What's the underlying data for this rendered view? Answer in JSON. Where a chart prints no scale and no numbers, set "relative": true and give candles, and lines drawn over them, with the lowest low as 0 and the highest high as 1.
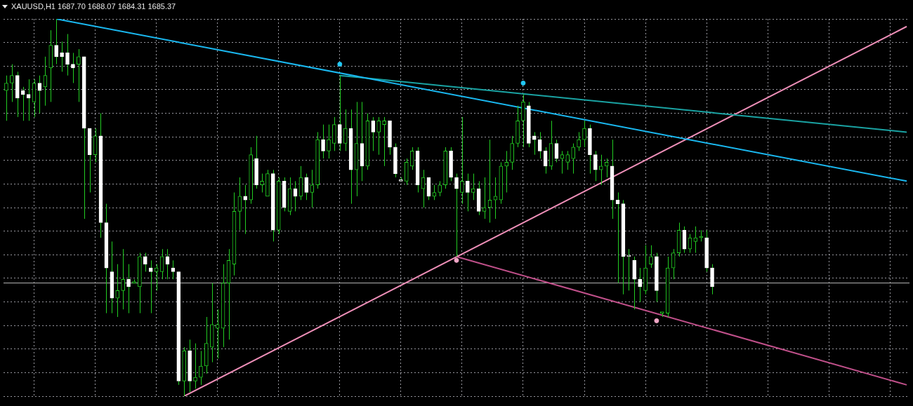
{
  "chart_data": {
    "type": "candlestick",
    "title": "XAUUSD,H1 1687.70 1688.07 1684.31 1685.37",
    "relative": true,
    "grid": true,
    "legend": false,
    "tick_labels": false,
    "categories": [
      null,
      null,
      null,
      null,
      null,
      null,
      null,
      null,
      null,
      null,
      null,
      null,
      null,
      null,
      null,
      null,
      null,
      null,
      null,
      null,
      null,
      null,
      null,
      null,
      null,
      null,
      null,
      null,
      null,
      null,
      null,
      null,
      null,
      null,
      null,
      null,
      null,
      null,
      null,
      null,
      null,
      null,
      null,
      null,
      null,
      null,
      null,
      null,
      null,
      null,
      null,
      null,
      null,
      null,
      null,
      null,
      null,
      null,
      null,
      null,
      null,
      null,
      null,
      null,
      null,
      null,
      null,
      null,
      null,
      null,
      null,
      null,
      null,
      null,
      null,
      null,
      null,
      null,
      null,
      null,
      null,
      null,
      null,
      null,
      null,
      null,
      null,
      null,
      null,
      null,
      null,
      null,
      null,
      null,
      null,
      null,
      null,
      null,
      null,
      null,
      null,
      null,
      null,
      null,
      null,
      null,
      null,
      null,
      null,
      null,
      null,
      null,
      null,
      null,
      null,
      null,
      null,
      null,
      null,
      null,
      null,
      null,
      null,
      null,
      null,
      null,
      null,
      null,
      null,
      null,
      null,
      null,
      null,
      null,
      null,
      null,
      null,
      null,
      null,
      null,
      null,
      null,
      null,
      null,
      null,
      null,
      null,
      null,
      null,
      null,
      null,
      null,
      null,
      null,
      null,
      null,
      null,
      null,
      null,
      null,
      null,
      null,
      null
    ],
    "ohlc": [
      [
        0.81,
        0.85,
        0.73,
        0.83
      ],
      [
        0.83,
        0.88,
        0.78,
        0.85
      ],
      [
        0.85,
        0.86,
        0.74,
        0.79
      ],
      [
        0.81,
        0.82,
        0.73,
        0.8
      ],
      [
        0.8,
        0.84,
        0.73,
        0.79
      ],
      [
        0.78,
        0.84,
        0.74,
        0.83
      ],
      [
        0.83,
        0.85,
        0.75,
        0.81
      ],
      [
        0.82,
        0.9,
        0.77,
        0.85
      ],
      [
        0.87,
        0.97,
        0.78,
        0.93
      ],
      [
        0.93,
        1,
        0.88,
        0.9
      ],
      [
        0.91,
        0.94,
        0.86,
        0.9
      ],
      [
        0.91,
        0.96,
        0.85,
        0.88
      ],
      [
        0.88,
        0.91,
        0.83,
        0.87
      ],
      [
        0.88,
        0.92,
        0.78,
        0.9
      ],
      [
        0.9,
        0.9,
        0.47,
        0.71
      ],
      [
        0.71,
        0.71,
        0.54,
        0.64
      ],
      [
        0.64,
        0.71,
        0.62,
        0.69
      ],
      [
        0.69,
        0.75,
        0.42,
        0.46
      ],
      [
        0.46,
        0.51,
        0.22,
        0.34
      ],
      [
        0.33,
        0.41,
        0.22,
        0.26
      ],
      [
        0.26,
        0.35,
        0.21,
        0.28
      ],
      [
        0.28,
        0.39,
        0.23,
        0.31
      ],
      [
        0.31,
        0.35,
        0.22,
        0.29
      ],
      [
        0.3,
        0.31,
        0.3,
        0.3
      ],
      [
        0.29,
        0.38,
        0.22,
        0.37
      ],
      [
        0.37,
        0.38,
        0.33,
        0.35
      ],
      [
        0.34,
        0.36,
        0.22,
        0.33
      ],
      [
        0.33,
        0.35,
        0.28,
        0.34
      ],
      [
        0.33,
        0.39,
        0.31,
        0.37
      ],
      [
        0.37,
        0.39,
        0.31,
        0.35
      ],
      [
        0.34,
        0.36,
        0.31,
        0.33
      ],
      [
        0.33,
        0.33,
        0.03,
        0.04
      ],
      [
        0.04,
        0.13,
        0,
        0.12
      ],
      [
        0.12,
        0.15,
        0.01,
        0.04
      ],
      [
        0.04,
        0.14,
        0.02,
        0.05
      ],
      [
        0.05,
        0.12,
        0.03,
        0.08
      ],
      [
        0.08,
        0.21,
        0.06,
        0.14
      ],
      [
        0.13,
        0.3,
        0.09,
        0.19
      ],
      [
        0.18,
        0.23,
        0.1,
        0.19
      ],
      [
        0.18,
        0.35,
        0.13,
        0.3
      ],
      [
        0.3,
        0.39,
        0.15,
        0.36
      ],
      [
        0.35,
        0.54,
        0.32,
        0.49
      ],
      [
        0.49,
        0.58,
        0.44,
        0.53
      ],
      [
        0.53,
        0.56,
        0.43,
        0.52
      ],
      [
        0.52,
        0.66,
        0.51,
        0.64
      ],
      [
        0.63,
        0.69,
        0.55,
        0.56
      ],
      [
        0.56,
        0.59,
        0.54,
        0.57
      ],
      [
        0.53,
        0.6,
        0.53,
        0.59
      ],
      [
        0.59,
        0.6,
        0.41,
        0.44
      ],
      [
        0.44,
        0.58,
        0.43,
        0.57
      ],
      [
        0.57,
        0.58,
        0.49,
        0.5
      ],
      [
        0.49,
        0.58,
        0.48,
        0.55
      ],
      [
        0.55,
        0.57,
        0.49,
        0.53
      ],
      [
        0.53,
        0.61,
        0.52,
        0.58
      ],
      [
        0.58,
        0.59,
        0.52,
        0.54
      ],
      [
        0.54,
        0.6,
        0.5,
        0.56
      ],
      [
        0.56,
        0.7,
        0.55,
        0.68
      ],
      [
        0.68,
        0.72,
        0.63,
        0.65
      ],
      [
        0.65,
        0.72,
        0.63,
        0.68
      ],
      [
        0.67,
        0.74,
        0.65,
        0.72
      ],
      [
        0.72,
        0.85,
        0.65,
        0.67
      ],
      [
        0.67,
        0.76,
        0.65,
        0.71
      ],
      [
        0.71,
        0.76,
        0.51,
        0.6
      ],
      [
        0.6,
        0.78,
        0.53,
        0.67
      ],
      [
        0.67,
        0.78,
        0.57,
        0.61
      ],
      [
        0.61,
        0.75,
        0.6,
        0.73
      ],
      [
        0.73,
        0.74,
        0.65,
        0.7
      ],
      [
        0.7,
        0.74,
        0.64,
        0.73
      ],
      [
        0.72,
        0.74,
        0.61,
        0.73
      ],
      [
        0.73,
        0.73,
        0.64,
        0.66
      ],
      [
        0.66,
        0.67,
        0.58,
        0.59
      ],
      [
        0.57,
        0.58,
        0.57,
        0.57
      ],
      [
        0.57,
        0.63,
        0.56,
        0.62
      ],
      [
        0.61,
        0.66,
        0.6,
        0.65
      ],
      [
        0.65,
        0.66,
        0.54,
        0.56
      ],
      [
        0.55,
        0.6,
        0.5,
        0.58
      ],
      [
        0.58,
        0.58,
        0.52,
        0.53
      ],
      [
        0.53,
        0.56,
        0.52,
        0.54
      ],
      [
        0.54,
        0.57,
        0.53,
        0.56
      ],
      [
        0.56,
        0.66,
        0.55,
        0.65
      ],
      [
        0.65,
        0.66,
        0.57,
        0.58
      ],
      [
        0.58,
        0.59,
        0.37,
        0.55
      ],
      [
        0.54,
        0.74,
        0.51,
        0.57
      ],
      [
        0.57,
        0.59,
        0.49,
        0.54
      ],
      [
        0.54,
        0.59,
        0.52,
        0.55
      ],
      [
        0.55,
        0.57,
        0.48,
        0.49
      ],
      [
        0.49,
        0.58,
        0.47,
        0.5
      ],
      [
        0.5,
        0.68,
        0.46,
        0.52
      ],
      [
        0.52,
        0.58,
        0.47,
        0.53
      ],
      [
        0.52,
        0.62,
        0.51,
        0.61
      ],
      [
        0.61,
        0.65,
        0.54,
        0.62
      ],
      [
        0.62,
        0.69,
        0.6,
        0.67
      ],
      [
        0.67,
        0.77,
        0.66,
        0.73
      ],
      [
        0.73,
        0.8,
        0.66,
        0.78
      ],
      [
        0.77,
        0.78,
        0.66,
        0.67
      ],
      [
        0.69,
        0.7,
        0.64,
        0.68
      ],
      [
        0.68,
        0.7,
        0.63,
        0.65
      ],
      [
        0.65,
        0.66,
        0.59,
        0.61
      ],
      [
        0.61,
        0.73,
        0.6,
        0.67
      ],
      [
        0.67,
        0.68,
        0.62,
        0.63
      ],
      [
        0.63,
        0.65,
        0.59,
        0.64
      ],
      [
        0.62,
        0.65,
        0.6,
        0.64
      ],
      [
        0.63,
        0.67,
        0.59,
        0.66
      ],
      [
        0.66,
        0.7,
        0.65,
        0.68
      ],
      [
        0.68,
        0.73,
        0.66,
        0.71
      ],
      [
        0.71,
        0.72,
        0.59,
        0.64
      ],
      [
        0.64,
        0.65,
        0.57,
        0.6
      ],
      [
        0.6,
        0.64,
        0.56,
        0.61
      ],
      [
        0.61,
        0.63,
        0.58,
        0.62
      ],
      [
        0.61,
        0.68,
        0.47,
        0.52
      ],
      [
        0.52,
        0.54,
        0.3,
        0.51
      ],
      [
        0.51,
        0.52,
        0.27,
        0.37
      ],
      [
        0.37,
        0.39,
        0.28,
        0.37
      ],
      [
        0.36,
        0.37,
        0.23,
        0.31
      ],
      [
        0.31,
        0.34,
        0.25,
        0.29
      ],
      [
        0.28,
        0.4,
        0.27,
        0.34
      ],
      [
        0.35,
        0.4,
        0.34,
        0.37
      ],
      [
        0.37,
        0.38,
        0.25,
        0.28
      ],
      [
        0.22,
        0.22,
        0.21,
        0.22
      ],
      [
        0.22,
        0.37,
        0.21,
        0.34
      ],
      [
        0.34,
        0.39,
        0.31,
        0.38
      ],
      [
        0.38,
        0.46,
        0.37,
        0.44
      ],
      [
        0.44,
        0.45,
        0.38,
        0.39
      ],
      [
        0.39,
        0.43,
        0.38,
        0.42
      ],
      [
        0.41,
        0.45,
        0.38,
        0.42
      ],
      [
        0.42,
        0.44,
        0.41,
        0.42
      ],
      [
        0.42,
        0.44,
        0.33,
        0.34
      ],
      [
        0.34,
        0.35,
        0.27,
        0.29
      ],
      null,
      null,
      null,
      null,
      null,
      null,
      null,
      null,
      null,
      null,
      null,
      null,
      null,
      null,
      null,
      null,
      null,
      null,
      null,
      null,
      null,
      null,
      null,
      null,
      null,
      null,
      null,
      null,
      null,
      null,
      null,
      null,
      null,
      null,
      null
    ],
    "colors": [
      "#22cc22",
      "#22cc22",
      "#ffffff",
      "#ffffff",
      "#ffffff",
      "#22cc22",
      "#ffffff",
      "#22cc22",
      "#22cc22",
      "#ffffff",
      "#ffffff",
      "#ffffff",
      "#ffffff",
      "#22cc22",
      "#ffffff",
      "#ffffff",
      "#22cc22",
      "#ffffff",
      "#ffffff",
      "#ffffff",
      "#22cc22",
      "#22cc22",
      "#ffffff",
      "#22cc22",
      "#22cc22",
      "#ffffff",
      "#ffffff",
      "#22cc22",
      "#22cc22",
      "#ffffff",
      "#ffffff",
      "#ffffff",
      "#22cc22",
      "#ffffff",
      "#22cc22",
      "#22cc22",
      "#22cc22",
      "#22cc22",
      "#22cc22",
      "#22cc22",
      "#22cc22",
      "#22cc22",
      "#22cc22",
      "#ffffff",
      "#22cc22",
      "#ffffff",
      "#22cc22",
      "#22cc22",
      "#ffffff",
      "#22cc22",
      "#ffffff",
      "#22cc22",
      "#ffffff",
      "#22cc22",
      "#ffffff",
      "#22cc22",
      "#22cc22",
      "#ffffff",
      "#22cc22",
      "#22cc22",
      "#ffffff",
      "#22cc22",
      "#ffffff",
      "#22cc22",
      "#ffffff",
      "#22cc22",
      "#ffffff",
      "#22cc22",
      "#22cc22",
      "#ffffff",
      "#ffffff",
      "#ffffff",
      "#22cc22",
      "#22cc22",
      "#ffffff",
      "#22cc22",
      "#ffffff",
      "#22cc22",
      "#22cc22",
      "#22cc22",
      "#ffffff",
      "#ffffff",
      "#22cc22",
      "#ffffff",
      "#22cc22",
      "#ffffff",
      "#22cc22",
      "#22cc22",
      "#22cc22",
      "#22cc22",
      "#22cc22",
      "#22cc22",
      "#22cc22",
      "#22cc22",
      "#ffffff",
      "#ffffff",
      "#ffffff",
      "#ffffff",
      "#22cc22",
      "#ffffff",
      "#22cc22",
      "#22cc22",
      "#22cc22",
      "#22cc22",
      "#22cc22",
      "#ffffff",
      "#ffffff",
      "#22cc22",
      "#22cc22",
      "#ffffff",
      "#ffffff",
      "#ffffff",
      "#ffffff",
      "#ffffff",
      "#ffffff",
      "#22cc22",
      "#22cc22",
      "#ffffff",
      "#22cc22",
      "#22cc22",
      "#22cc22",
      "#22cc22",
      "#ffffff",
      "#22cc22",
      "#22cc22",
      "#22cc22",
      "#ffffff",
      "#ffffff",
      null,
      null,
      null,
      null,
      null,
      null,
      null,
      null,
      null,
      null,
      null,
      null,
      null,
      null,
      null,
      null,
      null,
      null,
      null,
      null,
      null,
      null,
      null,
      null,
      null,
      null,
      null,
      null,
      null,
      null,
      null,
      null,
      null,
      null,
      null
    ],
    "ref_lines": [
      {
        "axis": "y",
        "value": 0.3,
        "color": "#b8b8b8"
      }
    ],
    "series": [
      {
        "type": "line",
        "color": "#1ab8f0",
        "values": [
          null,
          null,
          null,
          null,
          null,
          null,
          null,
          null,
          null,
          1,
          null,
          null,
          null,
          null,
          null,
          null,
          null,
          null,
          null,
          null,
          null,
          null,
          null,
          null,
          null,
          null,
          null,
          null,
          null,
          null,
          null,
          null,
          null,
          null,
          null,
          null,
          null,
          null,
          null,
          null,
          null,
          null,
          null,
          null,
          null,
          null,
          null,
          null,
          null,
          null,
          null,
          null,
          null,
          null,
          null,
          null,
          null,
          null,
          null,
          null,
          null,
          null,
          null,
          null,
          null,
          null,
          null,
          null,
          null,
          null,
          null,
          null,
          null,
          null,
          null,
          null,
          null,
          null,
          null,
          null,
          null,
          null,
          null,
          null,
          null,
          null,
          null,
          null,
          null,
          null,
          null,
          null,
          null,
          null,
          null,
          null,
          null,
          null,
          null,
          null,
          null,
          null,
          null,
          null,
          null,
          null,
          null,
          null,
          null,
          null,
          null,
          null,
          null,
          null,
          null,
          null,
          null,
          null,
          null,
          null,
          null,
          null,
          null,
          null,
          null,
          null,
          null,
          null,
          null,
          null,
          null,
          null,
          null,
          null,
          null,
          null,
          null,
          null,
          null,
          null,
          null,
          null,
          null,
          null,
          null,
          null,
          null,
          null,
          null,
          null,
          null,
          null,
          null,
          null,
          null,
          null,
          null,
          null,
          null,
          null,
          null,
          null,
          0.57
        ]
      },
      {
        "type": "line",
        "color": "#1aa3a3",
        "values": [
          null,
          null,
          null,
          null,
          null,
          null,
          null,
          null,
          null,
          null,
          null,
          null,
          null,
          null,
          null,
          null,
          null,
          null,
          null,
          null,
          null,
          null,
          null,
          null,
          null,
          null,
          null,
          null,
          null,
          null,
          null,
          null,
          null,
          null,
          null,
          null,
          null,
          null,
          null,
          null,
          null,
          null,
          null,
          null,
          null,
          null,
          null,
          null,
          null,
          null,
          null,
          null,
          null,
          null,
          null,
          null,
          null,
          null,
          null,
          null,
          0.85,
          null,
          null,
          null,
          null,
          null,
          null,
          null,
          null,
          null,
          null,
          null,
          null,
          null,
          null,
          null,
          null,
          null,
          null,
          null,
          null,
          null,
          null,
          null,
          null,
          null,
          null,
          null,
          null,
          null,
          null,
          null,
          null,
          null,
          null,
          null,
          null,
          null,
          null,
          null,
          null,
          null,
          null,
          null,
          null,
          null,
          null,
          null,
          null,
          null,
          null,
          null,
          null,
          null,
          null,
          null,
          null,
          null,
          null,
          null,
          null,
          null,
          null,
          null,
          null,
          null,
          null,
          null,
          null,
          null,
          null,
          null,
          null,
          null,
          null,
          null,
          null,
          null,
          null,
          null,
          null,
          null,
          null,
          null,
          null,
          null,
          null,
          null,
          null,
          null,
          null,
          null,
          null,
          null,
          null,
          null,
          null,
          null,
          null,
          null,
          null,
          null,
          0.7
        ]
      },
      {
        "type": "line",
        "color": "#ee8fb8",
        "values": [
          null,
          null,
          null,
          null,
          null,
          null,
          null,
          null,
          null,
          null,
          null,
          null,
          null,
          null,
          null,
          null,
          null,
          null,
          null,
          null,
          null,
          null,
          null,
          null,
          null,
          null,
          null,
          null,
          null,
          null,
          null,
          null,
          0,
          null,
          null,
          null,
          null,
          null,
          null,
          null,
          null,
          null,
          null,
          null,
          null,
          null,
          null,
          null,
          null,
          null,
          null,
          null,
          null,
          null,
          null,
          null,
          null,
          null,
          null,
          null,
          null,
          null,
          null,
          null,
          null,
          null,
          null,
          null,
          null,
          null,
          null,
          null,
          null,
          null,
          null,
          null,
          null,
          null,
          null,
          null,
          null,
          null,
          null,
          null,
          null,
          null,
          null,
          null,
          null,
          null,
          null,
          null,
          null,
          null,
          null,
          null,
          null,
          null,
          null,
          null,
          null,
          null,
          null,
          null,
          null,
          null,
          null,
          null,
          null,
          null,
          null,
          null,
          null,
          null,
          null,
          null,
          null,
          null,
          null,
          null,
          null,
          null,
          null,
          null,
          null,
          null,
          null,
          null,
          null,
          null,
          null,
          null,
          null,
          null,
          null,
          null,
          null,
          null,
          null,
          null,
          null,
          null,
          null,
          null,
          null,
          null,
          null,
          null,
          null,
          null,
          null,
          null,
          null,
          null,
          null,
          null,
          null,
          null,
          null,
          null,
          null,
          null,
          0.98
        ]
      },
      {
        "type": "line",
        "color": "#c0508a",
        "values": [
          null,
          null,
          null,
          null,
          null,
          null,
          null,
          null,
          null,
          null,
          null,
          null,
          null,
          null,
          null,
          null,
          null,
          null,
          null,
          null,
          null,
          null,
          null,
          null,
          null,
          null,
          null,
          null,
          null,
          null,
          null,
          null,
          null,
          null,
          null,
          null,
          null,
          null,
          null,
          null,
          null,
          null,
          null,
          null,
          null,
          null,
          null,
          null,
          null,
          null,
          null,
          null,
          null,
          null,
          null,
          null,
          null,
          null,
          null,
          null,
          null,
          null,
          null,
          null,
          null,
          null,
          null,
          null,
          null,
          null,
          null,
          null,
          null,
          null,
          null,
          null,
          null,
          null,
          null,
          null,
          null,
          0.37,
          null,
          null,
          null,
          null,
          null,
          null,
          null,
          null,
          null,
          null,
          null,
          null,
          null,
          null,
          null,
          null,
          null,
          null,
          null,
          null,
          null,
          null,
          null,
          null,
          null,
          null,
          null,
          null,
          null,
          null,
          null,
          null,
          null,
          null,
          null,
          null,
          null,
          null,
          null,
          null,
          null,
          null,
          null,
          null,
          null,
          null,
          null,
          null,
          null,
          null,
          null,
          null,
          null,
          null,
          null,
          null,
          null,
          null,
          null,
          null,
          null,
          null,
          null,
          null,
          null,
          null,
          null,
          null,
          null,
          null,
          null,
          null,
          null,
          null,
          null,
          null,
          null,
          null,
          null,
          null,
          0.03
        ]
      },
      {
        "type": "scatter",
        "marker": "circle",
        "color": "#22c8f5",
        "values": [
          null,
          null,
          null,
          null,
          null,
          null,
          null,
          null,
          null,
          null,
          null,
          null,
          null,
          null,
          null,
          null,
          null,
          null,
          null,
          null,
          null,
          null,
          null,
          null,
          null,
          null,
          null,
          null,
          null,
          null,
          null,
          null,
          null,
          null,
          null,
          null,
          null,
          null,
          null,
          null,
          null,
          null,
          null,
          null,
          null,
          null,
          null,
          null,
          null,
          null,
          null,
          null,
          null,
          null,
          null,
          null,
          null,
          null,
          null,
          null,
          0.88,
          null,
          null,
          null,
          null,
          null,
          null,
          null,
          null,
          null,
          null,
          null,
          null,
          null,
          null,
          null,
          null,
          null,
          null,
          null,
          null,
          null,
          null,
          null,
          null,
          null,
          null,
          null,
          null,
          null,
          null,
          null,
          null,
          0.83,
          null,
          null,
          null,
          null,
          null,
          null,
          null,
          null,
          null,
          null,
          null,
          null,
          null,
          null,
          null,
          null,
          null,
          null,
          null,
          null,
          null,
          null,
          null,
          null,
          null,
          null,
          null,
          null,
          null,
          null,
          null,
          null,
          null,
          null,
          null,
          null,
          null,
          null,
          null,
          null,
          null,
          null,
          null,
          null,
          null,
          null,
          null,
          null,
          null,
          null,
          null,
          null,
          null,
          null,
          null,
          null,
          null,
          null,
          null,
          null,
          null,
          null,
          null,
          null,
          null,
          null,
          null,
          null,
          null
        ]
      },
      {
        "type": "scatter",
        "marker": "circle",
        "color": "#f2a6c6",
        "values": [
          null,
          null,
          null,
          null,
          null,
          null,
          null,
          null,
          null,
          null,
          null,
          null,
          null,
          null,
          null,
          null,
          null,
          null,
          null,
          null,
          null,
          null,
          null,
          null,
          null,
          null,
          null,
          null,
          null,
          null,
          null,
          null,
          null,
          null,
          null,
          null,
          null,
          null,
          null,
          null,
          null,
          null,
          null,
          null,
          null,
          null,
          null,
          null,
          null,
          null,
          null,
          null,
          null,
          null,
          null,
          null,
          null,
          null,
          null,
          null,
          null,
          null,
          null,
          null,
          null,
          null,
          null,
          null,
          null,
          null,
          null,
          null,
          null,
          null,
          null,
          null,
          null,
          null,
          null,
          null,
          null,
          0.36,
          null,
          null,
          null,
          null,
          null,
          null,
          null,
          null,
          null,
          null,
          null,
          null,
          null,
          null,
          null,
          null,
          null,
          null,
          null,
          null,
          null,
          null,
          null,
          null,
          null,
          null,
          null,
          null,
          null,
          null,
          null,
          null,
          null,
          null,
          null,
          0.2,
          null,
          null,
          null,
          null,
          null,
          null,
          null,
          null,
          null,
          null,
          null,
          null,
          null,
          null,
          null,
          null,
          null,
          null,
          null,
          null,
          null,
          null,
          null,
          null,
          null,
          null,
          null,
          null,
          null,
          null,
          null,
          null,
          null,
          null,
          null,
          null,
          null,
          null,
          null,
          null,
          null,
          null,
          null,
          null,
          null
        ]
      }
    ]
  }
}
